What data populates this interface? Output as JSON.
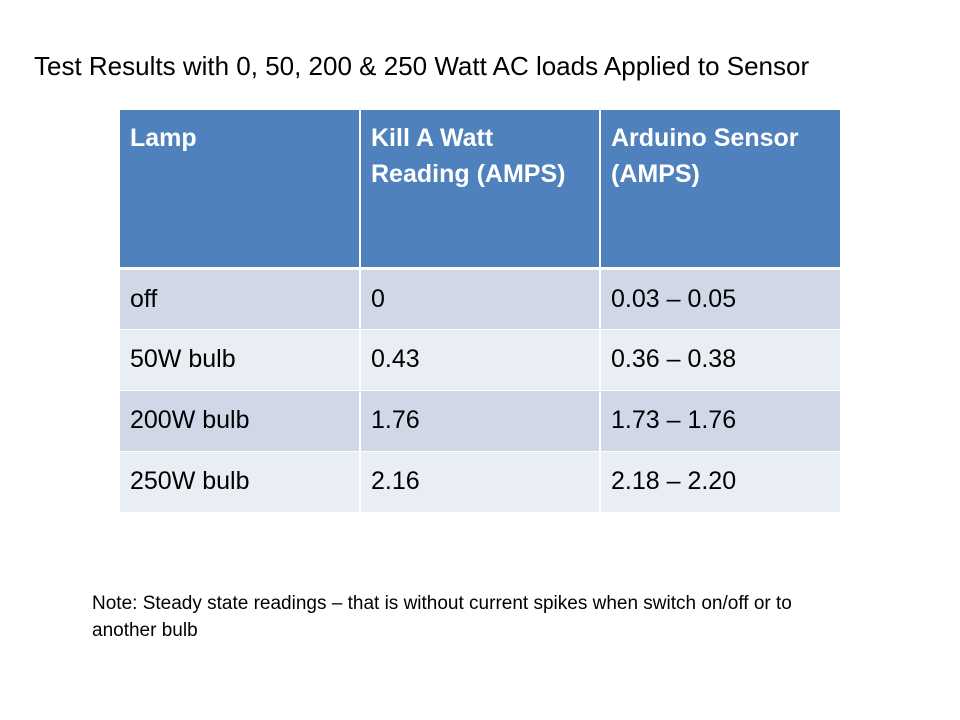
{
  "title": "Test Results with 0, 50, 200 & 250 Watt AC loads Applied to Sensor",
  "table": {
    "headers": [
      "Lamp",
      "Kill A Watt Reading (AMPS)",
      "Arduino Sensor (AMPS)"
    ],
    "rows": [
      [
        "off",
        "0",
        "0.03 – 0.05"
      ],
      [
        "50W bulb",
        "0.43",
        "0.36 – 0.38"
      ],
      [
        "200W bulb",
        "1.76",
        "1.73 – 1.76"
      ],
      [
        "250W bulb",
        "2.16",
        "2.18 – 2.20"
      ]
    ]
  },
  "note": "Note: Steady state readings – that is without current spikes when switch on/off or to another bulb",
  "colors": {
    "header_fill": "#4f81bd",
    "row_band_dark": "#d0d8e8",
    "row_band_light": "#e9edf4"
  }
}
